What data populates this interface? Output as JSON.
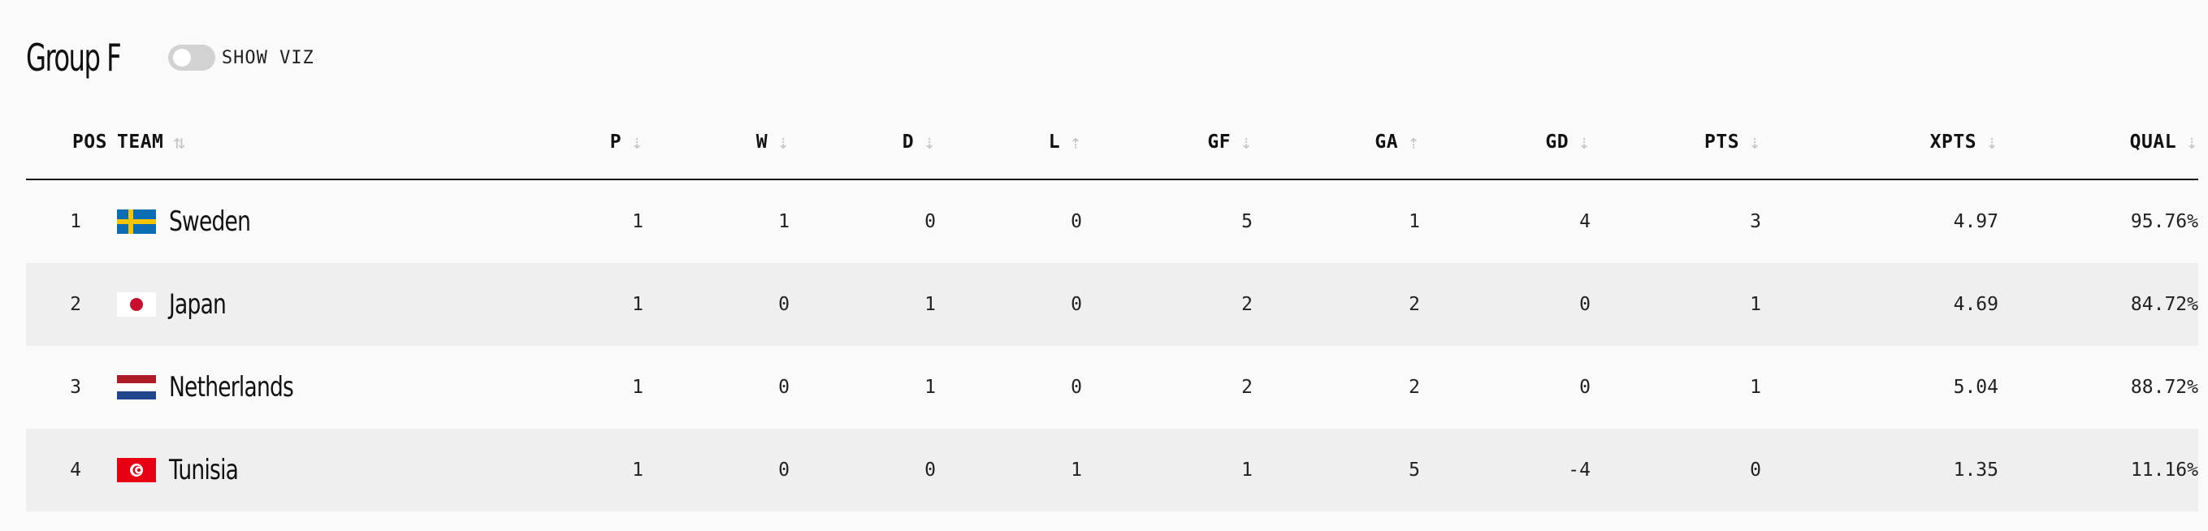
{
  "group": {
    "title": "Group F",
    "toggle_label": "SHOW VIZ",
    "toggle_on": false
  },
  "columns": [
    {
      "key": "pos",
      "label": "POS"
    },
    {
      "key": "team",
      "label": "TEAM",
      "sort_icon": "sort-alpha-icon"
    },
    {
      "key": "p",
      "label": "P",
      "sort_icon": "sort-numeric-desc-icon"
    },
    {
      "key": "w",
      "label": "W",
      "sort_icon": "sort-numeric-desc-icon"
    },
    {
      "key": "d",
      "label": "D",
      "sort_icon": "sort-numeric-desc-icon"
    },
    {
      "key": "l",
      "label": "L",
      "sort_icon": "sort-numeric-asc-icon"
    },
    {
      "key": "gf",
      "label": "GF",
      "sort_icon": "sort-numeric-desc-icon"
    },
    {
      "key": "ga",
      "label": "GA",
      "sort_icon": "sort-numeric-asc-icon"
    },
    {
      "key": "gd",
      "label": "GD",
      "sort_icon": "sort-numeric-desc-icon"
    },
    {
      "key": "pts",
      "label": "PTS",
      "sort_icon": "sort-numeric-desc-icon"
    },
    {
      "key": "xpts",
      "label": "XPTS",
      "sort_icon": "sort-numeric-desc-icon"
    },
    {
      "key": "qual",
      "label": "QUAL",
      "sort_icon": "sort-numeric-desc-icon"
    }
  ],
  "rows": [
    {
      "pos": "1",
      "team": "Sweden",
      "flag": "sweden-flag-icon",
      "p": "1",
      "w": "1",
      "d": "0",
      "l": "0",
      "gf": "5",
      "ga": "1",
      "gd": "4",
      "pts": "3",
      "xpts": "4.97",
      "qual": "95.76%"
    },
    {
      "pos": "2",
      "team": "Japan",
      "flag": "japan-flag-icon",
      "p": "1",
      "w": "0",
      "d": "1",
      "l": "0",
      "gf": "2",
      "ga": "2",
      "gd": "0",
      "pts": "1",
      "xpts": "4.69",
      "qual": "84.72%"
    },
    {
      "pos": "3",
      "team": "Netherlands",
      "flag": "netherlands-flag-icon",
      "p": "1",
      "w": "0",
      "d": "1",
      "l": "0",
      "gf": "2",
      "ga": "2",
      "gd": "0",
      "pts": "1",
      "xpts": "5.04",
      "qual": "88.72%"
    },
    {
      "pos": "4",
      "team": "Tunisia",
      "flag": "tunisia-flag-icon",
      "p": "1",
      "w": "0",
      "d": "0",
      "l": "1",
      "gf": "1",
      "ga": "5",
      "gd": "-4",
      "pts": "0",
      "xpts": "1.35",
      "qual": "11.16%"
    }
  ],
  "colors": {
    "sweden_blue": "#0b6db3",
    "sweden_yellow": "#f5c400",
    "japan_red": "#c8102e",
    "netherlands_red": "#ae1c28",
    "netherlands_blue": "#21468b",
    "tunisia_red": "#e70013",
    "row_shade": "#efefef",
    "sort_icon": "#c7c7c7"
  }
}
